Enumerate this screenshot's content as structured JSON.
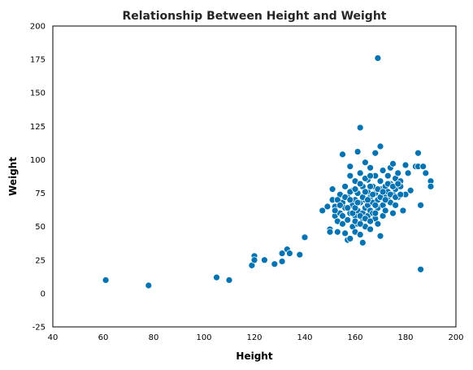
{
  "chart_data": {
    "type": "scatter",
    "title": "Relationship Between Height and Weight",
    "xlabel": "Height",
    "ylabel": "Weight",
    "xlim": [
      40,
      200
    ],
    "ylim": [
      -25,
      200
    ],
    "xticks": [
      40,
      60,
      80,
      100,
      120,
      140,
      160,
      180,
      200
    ],
    "yticks": [
      -25,
      0,
      25,
      50,
      75,
      100,
      125,
      150,
      175,
      200
    ],
    "grid": false,
    "marker_color": "#0173b2",
    "marker_edge_color": "#ffffff",
    "points": [
      [
        61,
        10
      ],
      [
        78,
        6
      ],
      [
        105,
        12
      ],
      [
        110,
        10
      ],
      [
        119,
        21
      ],
      [
        120,
        28
      ],
      [
        120,
        25
      ],
      [
        124,
        25
      ],
      [
        128,
        22
      ],
      [
        131,
        24
      ],
      [
        131,
        30
      ],
      [
        133,
        33
      ],
      [
        134,
        30
      ],
      [
        138,
        29
      ],
      [
        140,
        42
      ],
      [
        147,
        62
      ],
      [
        149,
        65
      ],
      [
        150,
        48
      ],
      [
        150,
        46
      ],
      [
        151,
        70
      ],
      [
        151,
        78
      ],
      [
        152,
        58
      ],
      [
        152,
        65
      ],
      [
        153,
        54
      ],
      [
        153,
        46
      ],
      [
        154,
        60
      ],
      [
        154,
        74
      ],
      [
        155,
        52
      ],
      [
        155,
        68
      ],
      [
        155,
        104
      ],
      [
        156,
        64
      ],
      [
        156,
        45
      ],
      [
        156,
        80
      ],
      [
        157,
        40
      ],
      [
        157,
        55
      ],
      [
        157,
        72
      ],
      [
        158,
        60
      ],
      [
        158,
        41
      ],
      [
        158,
        88
      ],
      [
        158,
        95
      ],
      [
        159,
        50
      ],
      [
        159,
        66
      ],
      [
        159,
        77
      ],
      [
        160,
        58
      ],
      [
        160,
        70
      ],
      [
        160,
        84
      ],
      [
        160,
        46
      ],
      [
        161,
        62
      ],
      [
        161,
        75
      ],
      [
        161,
        52
      ],
      [
        161,
        106
      ],
      [
        162,
        124
      ],
      [
        162,
        68
      ],
      [
        162,
        90
      ],
      [
        162,
        44
      ],
      [
        163,
        60
      ],
      [
        163,
        80
      ],
      [
        163,
        38
      ],
      [
        163,
        56
      ],
      [
        164,
        70
      ],
      [
        164,
        64
      ],
      [
        164,
        98
      ],
      [
        164,
        50
      ],
      [
        165,
        58
      ],
      [
        165,
        76
      ],
      [
        165,
        85
      ],
      [
        165,
        66
      ],
      [
        166,
        72
      ],
      [
        166,
        62
      ],
      [
        166,
        48
      ],
      [
        166,
        94
      ],
      [
        167,
        60
      ],
      [
        167,
        80
      ],
      [
        167,
        68
      ],
      [
        168,
        56
      ],
      [
        168,
        75
      ],
      [
        168,
        105
      ],
      [
        168,
        88
      ],
      [
        169,
        64
      ],
      [
        169,
        176
      ],
      [
        169,
        52
      ],
      [
        169,
        70
      ],
      [
        170,
        110
      ],
      [
        170,
        84
      ],
      [
        170,
        43
      ],
      [
        170,
        78
      ],
      [
        171,
        66
      ],
      [
        171,
        92
      ],
      [
        171,
        58
      ],
      [
        172,
        72
      ],
      [
        172,
        80
      ],
      [
        172,
        62
      ],
      [
        173,
        88
      ],
      [
        173,
        70
      ],
      [
        173,
        76
      ],
      [
        174,
        94
      ],
      [
        174,
        68
      ],
      [
        174,
        82
      ],
      [
        175,
        74
      ],
      [
        175,
        60
      ],
      [
        175,
        97
      ],
      [
        176,
        86
      ],
      [
        176,
        78
      ],
      [
        176,
        66
      ],
      [
        177,
        90
      ],
      [
        177,
        72
      ],
      [
        178,
        84
      ],
      [
        178,
        80
      ],
      [
        179,
        62
      ],
      [
        180,
        96
      ],
      [
        180,
        74
      ],
      [
        181,
        90
      ],
      [
        182,
        77
      ],
      [
        184,
        95
      ],
      [
        185,
        105
      ],
      [
        185,
        95
      ],
      [
        186,
        66
      ],
      [
        186,
        18
      ],
      [
        187,
        95
      ],
      [
        188,
        90
      ],
      [
        190,
        84
      ],
      [
        190,
        80
      ],
      [
        152,
        62
      ],
      [
        153,
        70
      ],
      [
        154,
        66
      ],
      [
        155,
        58
      ],
      [
        156,
        72
      ],
      [
        157,
        64
      ],
      [
        158,
        70
      ],
      [
        159,
        60
      ],
      [
        160,
        64
      ],
      [
        161,
        68
      ],
      [
        162,
        58
      ],
      [
        163,
        72
      ],
      [
        164,
        76
      ],
      [
        165,
        70
      ],
      [
        166,
        80
      ],
      [
        167,
        74
      ],
      [
        168,
        66
      ],
      [
        169,
        78
      ],
      [
        170,
        72
      ],
      [
        171,
        76
      ],
      [
        172,
        70
      ],
      [
        173,
        82
      ],
      [
        174,
        74
      ],
      [
        175,
        80
      ],
      [
        176,
        72
      ],
      [
        177,
        82
      ],
      [
        178,
        74
      ],
      [
        160,
        54
      ],
      [
        162,
        52
      ],
      [
        164,
        56
      ],
      [
        166,
        54
      ],
      [
        168,
        60
      ],
      [
        158,
        76
      ],
      [
        160,
        78
      ],
      [
        162,
        82
      ],
      [
        164,
        86
      ],
      [
        166,
        88
      ]
    ]
  }
}
